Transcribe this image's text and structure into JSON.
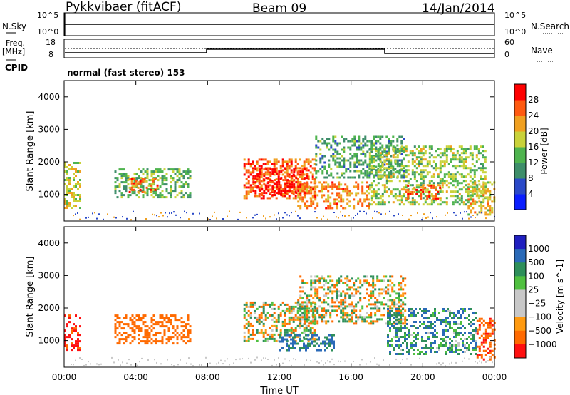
{
  "header": {
    "station": "Pykkvibaer (fitACF)",
    "beam": "Beam 09",
    "date": "14/Jan/2014"
  },
  "panels": {
    "nsky_label": "N.Sky",
    "nsearch_label": "N.Search",
    "nsky_ticks": [
      "10^5",
      "10^0"
    ],
    "nsearch_ticks": [
      "10^5",
      "10^0"
    ],
    "freq_label_line1": "Freq.",
    "freq_label_line2": "[MHz]",
    "freq_ticks": [
      "18",
      "8"
    ],
    "nave_label": "Nave",
    "nave_ticks": [
      "60",
      "0"
    ],
    "cpid_label": "CPID",
    "cpid_text": "normal (fast stereo) 153"
  },
  "colors": {
    "power_scale": [
      "#0a1eff",
      "#2a49c8",
      "#3e8e6a",
      "#4fb44f",
      "#c9d23a",
      "#f0a020",
      "#ff5a10",
      "#ff0000"
    ],
    "velocity_scale": [
      "#2020c0",
      "#2a6ab8",
      "#2e8f5a",
      "#50c040",
      "#c8c8c8",
      "#c8c8c8",
      "#ff9a10",
      "#ff6a00",
      "#ff1010"
    ]
  },
  "chart_data": [
    {
      "type": "heatmap",
      "name": "power",
      "xlabel": "",
      "ylabel": "Slant Range [km]",
      "x_range": [
        "00:00",
        "24:00"
      ],
      "xticks": [
        "00:00",
        "04:00",
        "08:00",
        "12:00",
        "16:00",
        "20:00",
        "00:00"
      ],
      "ylim": [
        180,
        4500
      ],
      "yticks": [
        1000,
        2000,
        3000,
        4000
      ],
      "colorbar_label": "Power [dB]",
      "colorbar_ticks": [
        4,
        8,
        12,
        16,
        20,
        24,
        28
      ],
      "colorbar_range": [
        0,
        32
      ],
      "regions": [
        {
          "t_start": 0.0,
          "t_end": 0.9,
          "r_min": 600,
          "r_max": 2000,
          "value": 18
        },
        {
          "t_start": 2.8,
          "t_end": 7.0,
          "r_min": 900,
          "r_max": 1800,
          "value": 14
        },
        {
          "t_start": 3.6,
          "t_end": 5.2,
          "r_min": 1100,
          "r_max": 1500,
          "value": 24
        },
        {
          "t_start": 10.0,
          "t_end": 14.0,
          "r_min": 900,
          "r_max": 2100,
          "value": 26
        },
        {
          "t_start": 10.5,
          "t_end": 13.5,
          "r_min": 1000,
          "r_max": 1800,
          "value": 30
        },
        {
          "t_start": 13.0,
          "t_end": 17.0,
          "r_min": 600,
          "r_max": 1400,
          "value": 24
        },
        {
          "t_start": 14.0,
          "t_end": 19.0,
          "r_min": 1500,
          "r_max": 2800,
          "value": 12
        },
        {
          "t_start": 17.0,
          "t_end": 23.5,
          "r_min": 700,
          "r_max": 2500,
          "value": 16
        },
        {
          "t_start": 19.0,
          "t_end": 21.0,
          "r_min": 900,
          "r_max": 1300,
          "value": 26
        },
        {
          "t_start": 22.5,
          "t_end": 24.0,
          "r_min": 400,
          "r_max": 1400,
          "value": 20
        }
      ]
    },
    {
      "type": "heatmap",
      "name": "velocity",
      "xlabel": "Time UT",
      "ylabel": "Slant Range [km]",
      "x_range": [
        "00:00",
        "24:00"
      ],
      "xticks": [
        "00:00",
        "04:00",
        "08:00",
        "12:00",
        "16:00",
        "20:00",
        "00:00"
      ],
      "ylim": [
        180,
        4500
      ],
      "yticks": [
        1000,
        2000,
        3000,
        4000
      ],
      "colorbar_label": "Velocity [m s^-1]",
      "colorbar_ticks": [
        "1000",
        "500",
        "100",
        "25",
        "−25",
        "−100",
        "−500",
        "−1000"
      ],
      "regions": [
        {
          "t_start": 0.0,
          "t_end": 0.9,
          "r_min": 700,
          "r_max": 1800,
          "value": -600
        },
        {
          "t_start": 2.8,
          "t_end": 7.0,
          "r_min": 900,
          "r_max": 1800,
          "value": -300
        },
        {
          "t_start": 10.0,
          "t_end": 14.0,
          "r_min": 1000,
          "r_max": 2200,
          "value": 0
        },
        {
          "t_start": 12.0,
          "t_end": 15.0,
          "r_min": 700,
          "r_max": 1200,
          "value": 300
        },
        {
          "t_start": 13.0,
          "t_end": 19.0,
          "r_min": 1500,
          "r_max": 3000,
          "value": 0
        },
        {
          "t_start": 18.0,
          "t_end": 23.0,
          "r_min": 600,
          "r_max": 2000,
          "value": 200
        },
        {
          "t_start": 23.0,
          "t_end": 24.0,
          "r_min": 400,
          "r_max": 1700,
          "value": -400
        }
      ]
    }
  ]
}
